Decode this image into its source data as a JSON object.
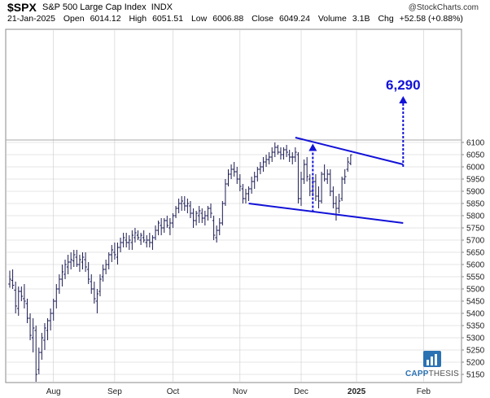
{
  "header": {
    "symbol": "$SPX",
    "name": "S&P 500 Large Cap Index",
    "exchange": "INDX",
    "watermark": "@StockCharts.com",
    "date": "21-Jan-2025",
    "open_label": "Open",
    "open": "6014.12",
    "high_label": "High",
    "high": "6051.51",
    "low_label": "Low",
    "low": "6006.88",
    "close_label": "Close",
    "close": "6049.24",
    "volume_label": "Volume",
    "volume": "3.1B",
    "chg_label": "Chg",
    "chg": "+52.58 (+0.88%)"
  },
  "logo": {
    "part1": "CAPP",
    "part2": "THESIS"
  },
  "colors": {
    "bars": "#1c1c55",
    "annotation": "#1212d8",
    "grid": "#cccccc",
    "highlight_line": "#aaaaaa"
  },
  "chart_data": {
    "type": "ohlc",
    "title": "",
    "xlabel": "",
    "ylabel": "",
    "ylim": [
      5130,
      6160
    ],
    "y_axis_position": "right",
    "y_ticks": [
      5150,
      5200,
      5250,
      5300,
      5350,
      5400,
      5450,
      5500,
      5550,
      5600,
      5650,
      5700,
      5750,
      5800,
      5850,
      5900,
      5950,
      6000,
      6050,
      6100
    ],
    "x_ticks": [
      {
        "label": "Aug",
        "bar": 15,
        "bold": false
      },
      {
        "label": "Sep",
        "bar": 36,
        "bold": false
      },
      {
        "label": "Oct",
        "bar": 56,
        "bold": false
      },
      {
        "label": "Nov",
        "bar": 79,
        "bold": false
      },
      {
        "label": "Dec",
        "bar": 100,
        "bold": false
      },
      {
        "label": "2025",
        "bar": 119,
        "bold": true
      },
      {
        "label": "Feb",
        "bar": 142,
        "bold": false
      }
    ],
    "reference_level": 6110,
    "ohlc": [
      [
        5520,
        5575,
        5505,
        5540
      ],
      [
        5535,
        5580,
        5500,
        5515
      ],
      [
        5495,
        5530,
        5400,
        5430
      ],
      [
        5420,
        5510,
        5390,
        5490
      ],
      [
        5490,
        5510,
        5450,
        5470
      ],
      [
        5460,
        5520,
        5420,
        5450
      ],
      [
        5440,
        5460,
        5360,
        5380
      ],
      [
        5380,
        5400,
        5290,
        5310
      ],
      [
        5300,
        5380,
        5240,
        5340
      ],
      [
        5330,
        5350,
        5120,
        5150
      ],
      [
        5170,
        5260,
        5150,
        5240
      ],
      [
        5240,
        5320,
        5210,
        5300
      ],
      [
        5290,
        5360,
        5250,
        5340
      ],
      [
        5330,
        5380,
        5290,
        5370
      ],
      [
        5370,
        5420,
        5330,
        5400
      ],
      [
        5400,
        5460,
        5370,
        5450
      ],
      [
        5450,
        5520,
        5420,
        5500
      ],
      [
        5500,
        5560,
        5480,
        5540
      ],
      [
        5540,
        5600,
        5510,
        5570
      ],
      [
        5560,
        5620,
        5540,
        5600
      ],
      [
        5590,
        5640,
        5560,
        5610
      ],
      [
        5610,
        5650,
        5580,
        5620
      ],
      [
        5615,
        5660,
        5590,
        5640
      ],
      [
        5630,
        5660,
        5590,
        5600
      ],
      [
        5600,
        5640,
        5570,
        5620
      ],
      [
        5610,
        5650,
        5580,
        5630
      ],
      [
        5620,
        5650,
        5570,
        5590
      ],
      [
        5580,
        5610,
        5520,
        5540
      ],
      [
        5530,
        5560,
        5480,
        5500
      ],
      [
        5500,
        5530,
        5440,
        5460
      ],
      [
        5450,
        5500,
        5400,
        5480
      ],
      [
        5490,
        5560,
        5470,
        5540
      ],
      [
        5550,
        5600,
        5530,
        5580
      ],
      [
        5580,
        5620,
        5560,
        5600
      ],
      [
        5600,
        5650,
        5580,
        5640
      ],
      [
        5640,
        5680,
        5610,
        5660
      ],
      [
        5650,
        5690,
        5620,
        5640
      ],
      [
        5630,
        5690,
        5600,
        5670
      ],
      [
        5670,
        5710,
        5650,
        5690
      ],
      [
        5690,
        5730,
        5670,
        5710
      ],
      [
        5700,
        5730,
        5670,
        5690
      ],
      [
        5690,
        5720,
        5660,
        5700
      ],
      [
        5690,
        5740,
        5660,
        5720
      ],
      [
        5710,
        5750,
        5690,
        5730
      ],
      [
        5720,
        5740,
        5700,
        5710
      ],
      [
        5700,
        5730,
        5680,
        5720
      ],
      [
        5710,
        5740,
        5690,
        5700
      ],
      [
        5690,
        5720,
        5670,
        5700
      ],
      [
        5700,
        5730,
        5670,
        5690
      ],
      [
        5690,
        5720,
        5660,
        5710
      ],
      [
        5710,
        5760,
        5700,
        5740
      ],
      [
        5740,
        5780,
        5720,
        5770
      ],
      [
        5760,
        5790,
        5720,
        5750
      ],
      [
        5750,
        5790,
        5730,
        5780
      ],
      [
        5780,
        5800,
        5750,
        5760
      ],
      [
        5750,
        5790,
        5720,
        5770
      ],
      [
        5770,
        5810,
        5750,
        5800
      ],
      [
        5800,
        5840,
        5790,
        5830
      ],
      [
        5830,
        5870,
        5810,
        5850
      ],
      [
        5850,
        5880,
        5820,
        5860
      ],
      [
        5850,
        5880,
        5820,
        5840
      ],
      [
        5840,
        5870,
        5810,
        5850
      ],
      [
        5840,
        5860,
        5790,
        5810
      ],
      [
        5810,
        5830,
        5750,
        5780
      ],
      [
        5780,
        5820,
        5760,
        5810
      ],
      [
        5800,
        5840,
        5770,
        5820
      ],
      [
        5810,
        5830,
        5770,
        5790
      ],
      [
        5790,
        5820,
        5760,
        5800
      ],
      [
        5800,
        5840,
        5780,
        5830
      ],
      [
        5830,
        5850,
        5790,
        5810
      ],
      [
        5780,
        5800,
        5700,
        5720
      ],
      [
        5710,
        5760,
        5690,
        5740
      ],
      [
        5740,
        5790,
        5720,
        5770
      ],
      [
        5770,
        5860,
        5760,
        5850
      ],
      [
        5850,
        5950,
        5840,
        5930
      ],
      [
        5930,
        5990,
        5920,
        5970
      ],
      [
        5970,
        6010,
        5950,
        5990
      ],
      [
        5990,
        6020,
        5960,
        5980
      ],
      [
        5980,
        6000,
        5930,
        5950
      ],
      [
        5950,
        5970,
        5900,
        5920
      ],
      [
        5910,
        5930,
        5850,
        5870
      ],
      [
        5870,
        5910,
        5850,
        5890
      ],
      [
        5890,
        5920,
        5860,
        5910
      ],
      [
        5910,
        5960,
        5890,
        5940
      ],
      [
        5940,
        5980,
        5910,
        5960
      ],
      [
        5960,
        6000,
        5940,
        5990
      ],
      [
        5990,
        6020,
        5970,
        6000
      ],
      [
        6000,
        6040,
        5980,
        6020
      ],
      [
        6020,
        6050,
        6000,
        6030
      ],
      [
        6030,
        6060,
        6010,
        6040
      ],
      [
        6040,
        6080,
        6020,
        6060
      ],
      [
        6060,
        6100,
        6040,
        6080
      ],
      [
        6080,
        6090,
        6050,
        6060
      ],
      [
        6060,
        6080,
        6030,
        6050
      ],
      [
        6050,
        6080,
        6030,
        6070
      ],
      [
        6070,
        6090,
        6040,
        6060
      ],
      [
        6050,
        6070,
        6020,
        6040
      ],
      [
        6040,
        6060,
        6010,
        6040
      ],
      [
        6040,
        6080,
        6020,
        6060
      ],
      [
        6050,
        6060,
        5850,
        5870
      ],
      [
        5870,
        5980,
        5840,
        5950
      ],
      [
        5950,
        6030,
        5930,
        6010
      ],
      [
        6010,
        6040,
        5940,
        5960
      ],
      [
        5950,
        5970,
        5880,
        5900
      ],
      [
        5900,
        5960,
        5880,
        5940
      ],
      [
        5940,
        5970,
        5860,
        5880
      ],
      [
        5880,
        5920,
        5830,
        5860
      ],
      [
        5860,
        5980,
        5850,
        5970
      ],
      [
        5970,
        6010,
        5940,
        5950
      ],
      [
        5950,
        5990,
        5930,
        5970
      ],
      [
        5970,
        5990,
        5880,
        5900
      ],
      [
        5900,
        5920,
        5830,
        5850
      ],
      [
        5850,
        5880,
        5780,
        5830
      ],
      [
        5830,
        5890,
        5810,
        5860
      ],
      [
        5870,
        5960,
        5860,
        5950
      ],
      [
        5950,
        5990,
        5930,
        5960
      ],
      [
        5990,
        6040,
        5980,
        6020
      ],
      [
        6014.12,
        6051.51,
        6006.88,
        6049.24
      ]
    ],
    "trendlines": [
      {
        "from": {
          "bar": 98,
          "value": 6120
        },
        "to": {
          "bar": 135,
          "value": 6010
        }
      },
      {
        "from": {
          "bar": 82,
          "value": 5850
        },
        "to": {
          "bar": 135,
          "value": 5770
        }
      }
    ],
    "measured_moves": [
      {
        "bar": 104,
        "from": 5815,
        "to": 6095
      },
      {
        "bar": 135,
        "from": 6000,
        "to": 6290
      }
    ],
    "target_label": "6,290"
  }
}
